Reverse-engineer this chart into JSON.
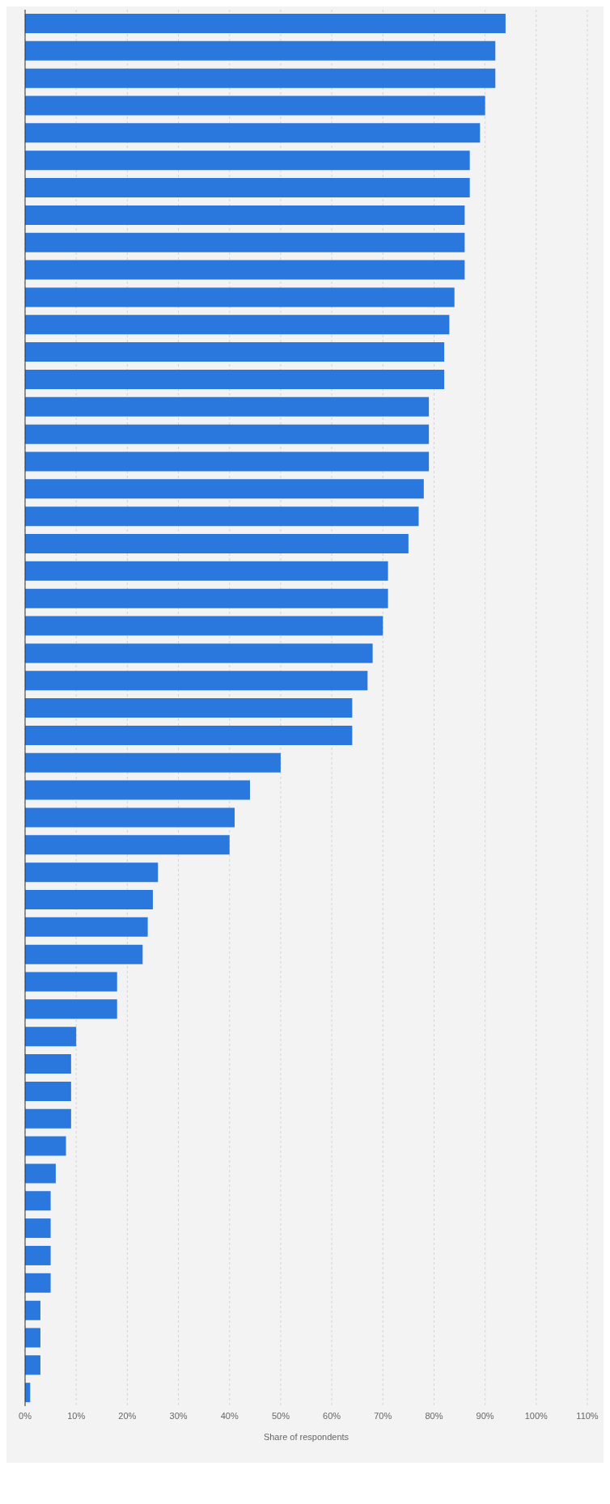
{
  "chart_data": {
    "type": "bar",
    "orientation": "horizontal",
    "xlabel": "Share of respondents",
    "categories": [
      null,
      null,
      null,
      null,
      null,
      null,
      null,
      null,
      null,
      null,
      null,
      null,
      null,
      null,
      null,
      null,
      null,
      null,
      null,
      null,
      null,
      null,
      null,
      null,
      null,
      null,
      null,
      null,
      null,
      null,
      null,
      null,
      null,
      null,
      null,
      null,
      null,
      null,
      null,
      null,
      null,
      null,
      null,
      null,
      null,
      null,
      null,
      null,
      null,
      null,
      null
    ],
    "values": [
      94,
      92,
      92,
      90,
      89,
      87,
      87,
      86,
      86,
      86,
      84,
      83,
      82,
      82,
      79,
      79,
      79,
      78,
      77,
      75,
      71,
      71,
      70,
      68,
      67,
      64,
      64,
      50,
      44,
      41,
      40,
      26,
      25,
      24,
      23,
      18,
      18,
      10,
      9,
      9,
      9,
      8,
      6,
      5,
      5,
      5,
      5,
      3,
      3,
      3,
      1
    ],
    "color": "#2a77dd",
    "xlim": [
      0,
      110
    ],
    "xticks": [
      {
        "value": 0,
        "label": "0%"
      },
      {
        "value": 10,
        "label": "10%"
      },
      {
        "value": 20,
        "label": "20%"
      },
      {
        "value": 30,
        "label": "30%"
      },
      {
        "value": 40,
        "label": "40%"
      },
      {
        "value": 50,
        "label": "50%"
      },
      {
        "value": 60,
        "label": "60%"
      },
      {
        "value": 70,
        "label": "70%"
      },
      {
        "value": 80,
        "label": "80%"
      },
      {
        "value": 90,
        "label": "90%"
      },
      {
        "value": 100,
        "label": "100%"
      },
      {
        "value": 110,
        "label": "110%"
      }
    ],
    "grid": "x",
    "tick_labels": "x",
    "legend": false
  }
}
